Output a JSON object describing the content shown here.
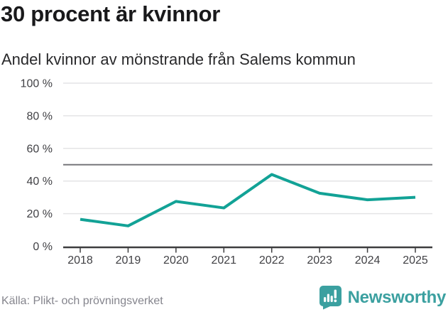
{
  "header": {
    "title": "30 procent är kvinnor",
    "subtitle": "Andel kvinnor av mönstrande från Salems kommun"
  },
  "footer": {
    "source": "Källa: Plikt- och prövningsverket",
    "brand_name": "Newsworthy"
  },
  "icons": {
    "brand": "newsworthy-chart-bubble-icon"
  },
  "colors": {
    "line": "#12a296",
    "grid": "#e4e4e6",
    "reference_line": "#76777a",
    "axis": "#3d3d3f",
    "tick_text": "#414145",
    "brand_teal": "#3ba0a0"
  },
  "chart_data": {
    "type": "line",
    "title": "30 procent är kvinnor",
    "subtitle": "Andel kvinnor av mönstrande från Salems kommun",
    "x": [
      "2018",
      "2019",
      "2020",
      "2021",
      "2022",
      "2023",
      "2024",
      "2025"
    ],
    "series": [
      {
        "name": "Andel kvinnor av mönstrande",
        "values": [
          16.5,
          12.5,
          27.5,
          23.5,
          44,
          32.5,
          28.5,
          30
        ]
      }
    ],
    "unit": "%",
    "ylim": [
      0,
      100
    ],
    "yticks": [
      0,
      20,
      40,
      60,
      80,
      100
    ],
    "ytick_labels": [
      "0 %",
      "20 %",
      "40 %",
      "60 %",
      "80 %",
      "100 %"
    ],
    "reference_line": 50,
    "grid": true,
    "legend": false
  }
}
